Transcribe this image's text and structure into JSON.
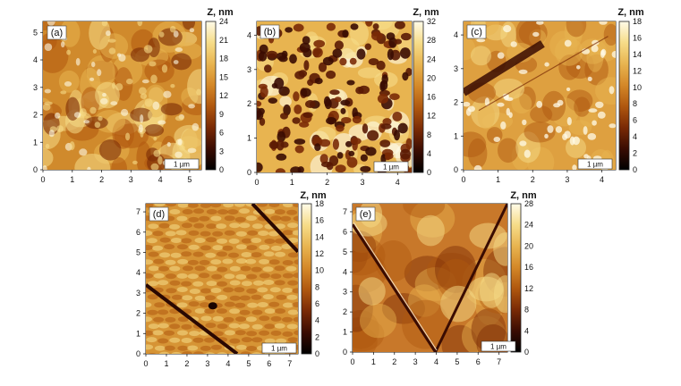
{
  "colormap": [
    "#000000",
    "#3a0c02",
    "#7a2a05",
    "#b0580f",
    "#d48828",
    "#e8b450",
    "#f6dc88",
    "#fffbe8"
  ],
  "panels": [
    {
      "label": "(a)",
      "unit": "Z, nm",
      "scale_bar": "1 µm",
      "xticks": [
        "0",
        "1",
        "2",
        "3",
        "4",
        "5"
      ],
      "yticks": [
        "0",
        "1",
        "2",
        "3",
        "4",
        "5"
      ],
      "colorbar_ticks": [
        "0",
        "3",
        "6",
        "9",
        "12",
        "15",
        "18",
        "21",
        "24"
      ],
      "texture": "grainy"
    },
    {
      "label": "(b)",
      "unit": "Z, nm",
      "scale_bar": "1 µm",
      "xticks": [
        "0",
        "1",
        "2",
        "3",
        "4"
      ],
      "yticks": [
        "0",
        "1",
        "2",
        "3",
        "4"
      ],
      "colorbar_ticks": [
        "0",
        "4",
        "8",
        "12",
        "16",
        "20",
        "24",
        "28",
        "32"
      ],
      "texture": "pitted"
    },
    {
      "label": "(c)",
      "unit": "Z, nm",
      "scale_bar": "1 µm",
      "xticks": [
        "0",
        "1",
        "2",
        "3",
        "4"
      ],
      "yticks": [
        "0",
        "1",
        "2",
        "3",
        "4"
      ],
      "colorbar_ticks": [
        "0",
        "2",
        "4",
        "6",
        "8",
        "10",
        "12",
        "14",
        "16",
        "18"
      ],
      "texture": "smooth_with_groove"
    },
    {
      "label": "(d)",
      "unit": "Z, nm",
      "scale_bar": "1 µm",
      "xticks": [
        "0",
        "1",
        "2",
        "3",
        "4",
        "5",
        "6",
        "7"
      ],
      "yticks": [
        "0",
        "1",
        "2",
        "3",
        "4",
        "5",
        "6",
        "7"
      ],
      "colorbar_ticks": [
        "0",
        "2",
        "4",
        "6",
        "8",
        "10",
        "12",
        "14",
        "16",
        "18"
      ],
      "texture": "scaly_with_scratches"
    },
    {
      "label": "(e)",
      "unit": "Z, nm",
      "scale_bar": "1 µm",
      "xticks": [
        "0",
        "1",
        "2",
        "3",
        "4",
        "5",
        "6",
        "7"
      ],
      "yticks": [
        "0",
        "1",
        "2",
        "3",
        "4",
        "5",
        "6",
        "7"
      ],
      "colorbar_ticks": [
        "0",
        "4",
        "8",
        "12",
        "16",
        "20",
        "24",
        "28"
      ],
      "texture": "v_scratch"
    }
  ]
}
